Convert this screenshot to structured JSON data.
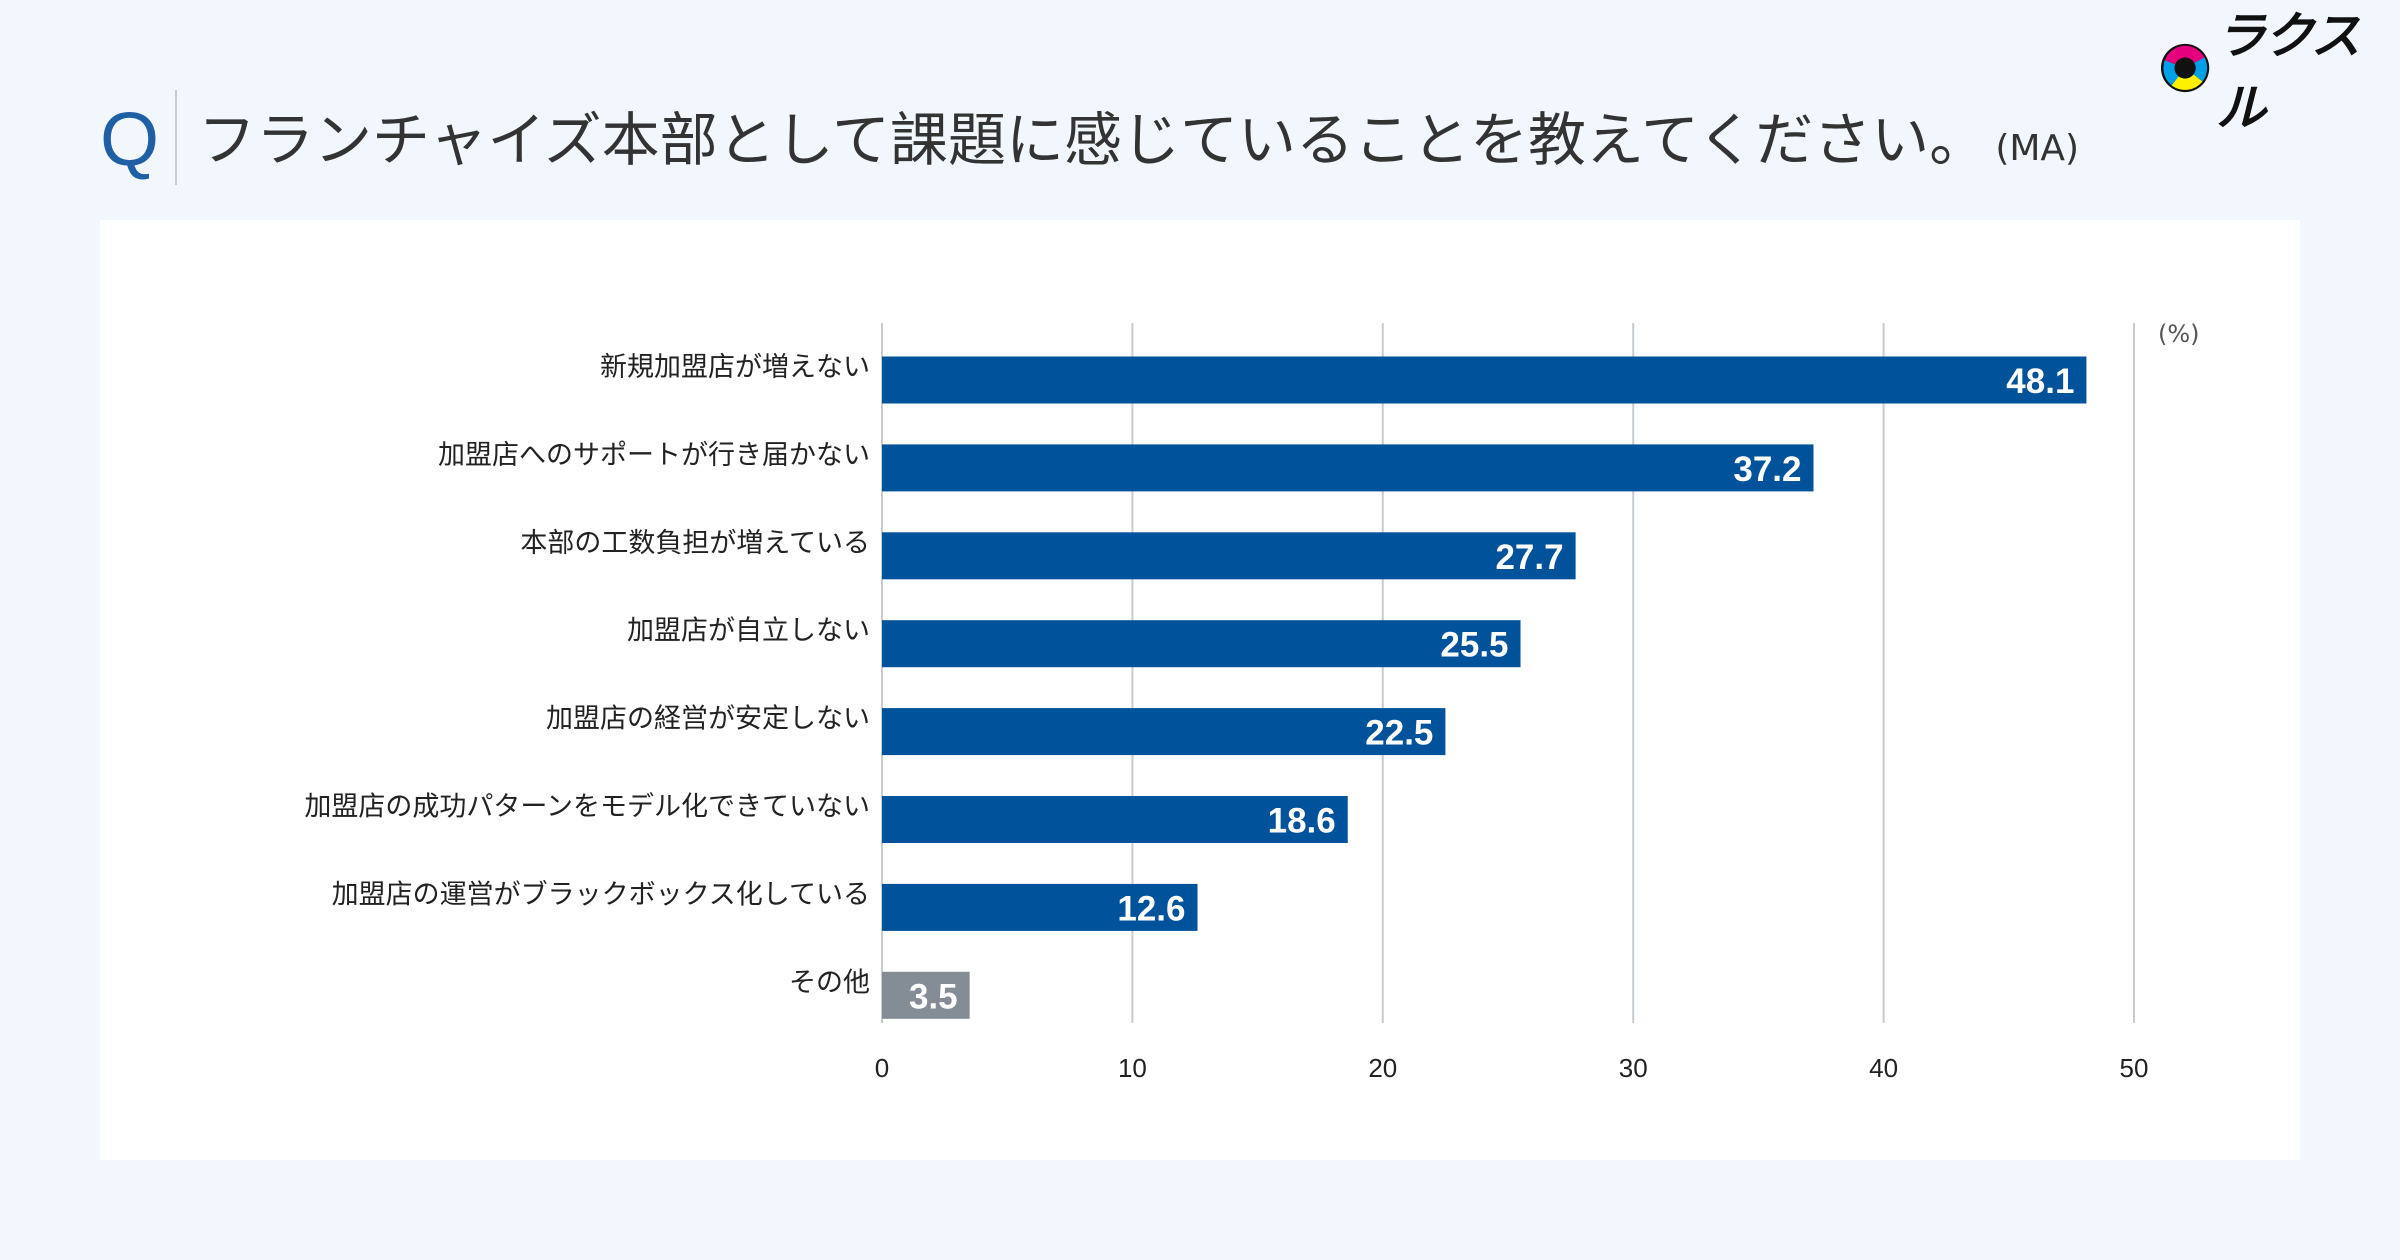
{
  "header": {
    "q_mark": "Q",
    "question": "フランチャイズ本部として課題に感じていることを教えてください。",
    "question_suffix": "(MA)"
  },
  "logo": {
    "text": "ラクスル",
    "icon": "rakusuru-logo-icon"
  },
  "colors": {
    "bar_primary": "#00529b",
    "bar_other": "#848d96",
    "grid": "#c8ccd0",
    "accent": "#1f5fa6"
  },
  "chart_data": {
    "type": "bar",
    "orientation": "horizontal",
    "categories": [
      "新規加盟店が増えない",
      "加盟店へのサポートが行き届かない",
      "本部の工数負担が増えている",
      "加盟店が自立しない",
      "加盟店の経営が安定しない",
      "加盟店の成功パターンをモデル化できていない",
      "加盟店の運営がブラックボックス化している",
      "その他"
    ],
    "values": [
      48.1,
      37.2,
      27.7,
      25.5,
      22.5,
      18.6,
      12.6,
      3.5
    ],
    "value_labels": [
      "48.1",
      "37.2",
      "27.7",
      "25.5",
      "22.5",
      "18.6",
      "12.6",
      "3.5"
    ],
    "xlim": [
      0,
      50
    ],
    "ticks": [
      0,
      10,
      20,
      30,
      40,
      50
    ],
    "tick_labels": [
      "0",
      "10",
      "20",
      "30",
      "40",
      "50"
    ],
    "unit": "(%)",
    "grid": true
  }
}
